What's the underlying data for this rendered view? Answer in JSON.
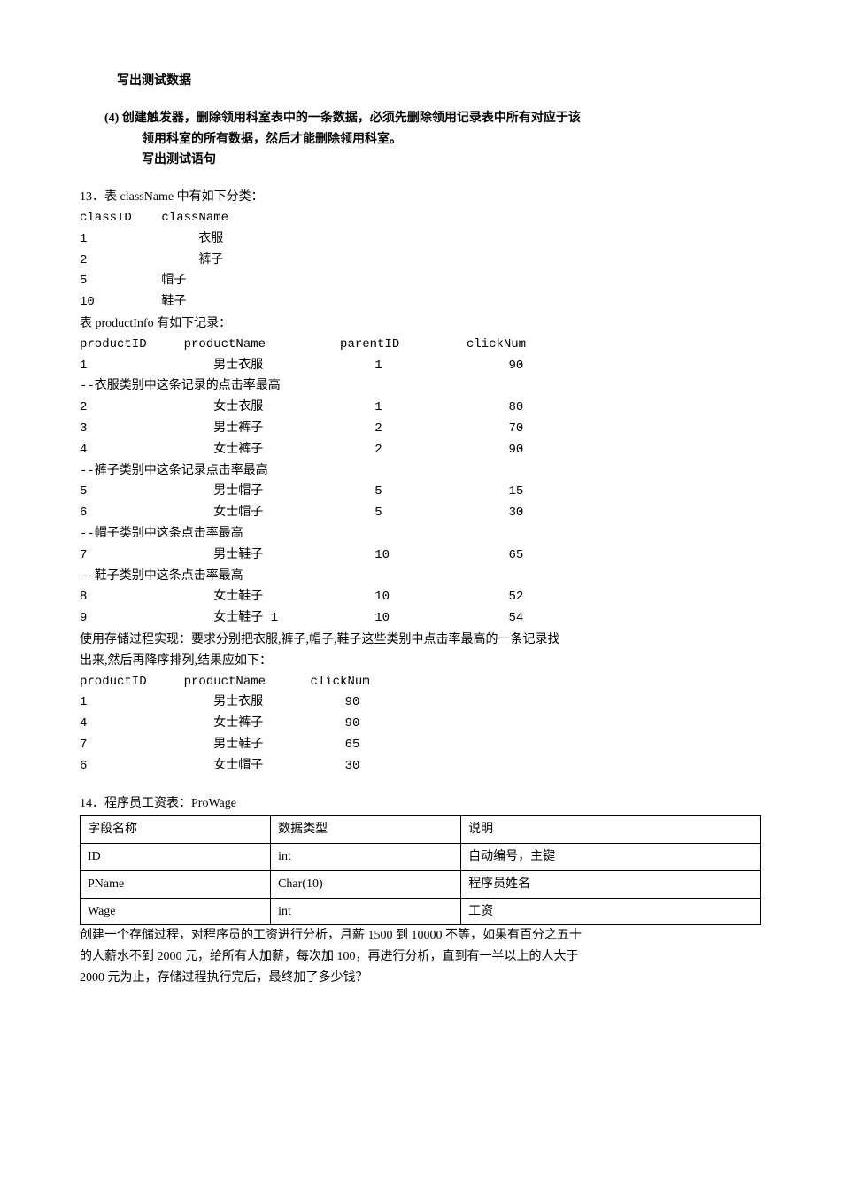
{
  "p1": {
    "l1": "写出测试数据"
  },
  "p2": {
    "l1": "(4) 创建触发器，删除领用科室表中的一条数据，必须先删除领用记录表中所有对应于该",
    "l2": "领用科室的所有数据，然后才能删除领用科室。",
    "l3": "写出测试语句"
  },
  "q13": {
    "title": "13．表 className 中有如下分类：",
    "classHeader": "classID    className",
    "classRows": [
      "1               衣服",
      "2               裤子",
      "5          帽子",
      "10         鞋子"
    ],
    "prodTitle": "表 productInfo 有如下记录：",
    "prodHeader": "productID     productName          parentID         clickNum",
    "prodRows": [
      "1                 男士衣服               1                 90",
      "--衣服类别中这条记录的点击率最高",
      "2                 女士衣服               1                 80",
      "3                 男士裤子               2                 70",
      "4                 女士裤子               2                 90",
      "--裤子类别中这条记录点击率最高",
      "5                 男士帽子               5                 15",
      "6                 女士帽子               5                 30",
      "--帽子类别中这条点击率最高",
      "7                 男士鞋子               10                65",
      "--鞋子类别中这条点击率最高",
      "8                 女士鞋子               10                52",
      "9                 女士鞋子 1             10                54"
    ],
    "req1": "使用存储过程实现：要求分别把衣服,裤子,帽子,鞋子这些类别中点击率最高的一条记录找",
    "req2": "出来,然后再降序排列,结果应如下：",
    "resHeader": "productID     productName      clickNum",
    "resRows": [
      "1                 男士衣服           90",
      "4                 女士裤子           90",
      "7                 男士鞋子           65",
      "6                 女士帽子           30"
    ]
  },
  "q14": {
    "title": "14．程序员工资表：ProWage",
    "headers": [
      "字段名称",
      "数据类型",
      "说明"
    ],
    "rows": [
      [
        "ID",
        "int",
        "自动编号，主键"
      ],
      [
        "PName",
        "Char(10)",
        "程序员姓名"
      ],
      [
        "Wage",
        "int",
        "工资"
      ]
    ],
    "desc1": "创建一个存储过程，对程序员的工资进行分析，月薪 1500 到 10000 不等，如果有百分之五十",
    "desc2": "的人薪水不到 2000 元，给所有人加薪，每次加 100，再进行分析，直到有一半以上的人大于",
    "desc3": "2000 元为止，存储过程执行完后，最终加了多少钱？"
  }
}
